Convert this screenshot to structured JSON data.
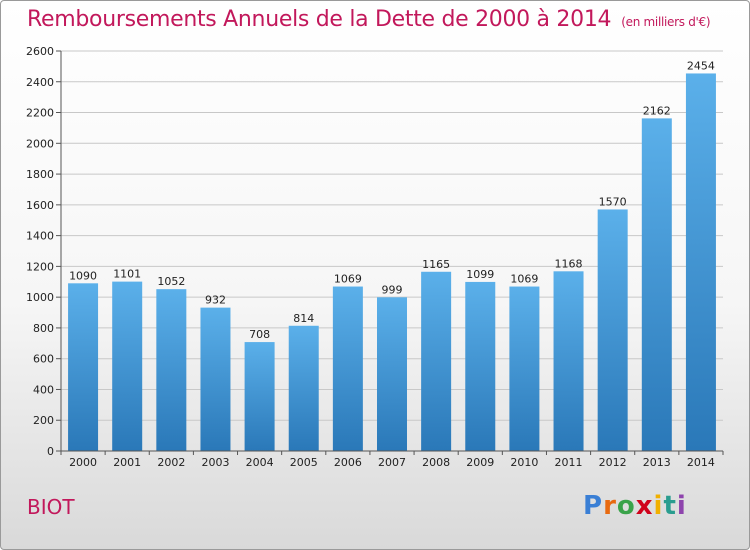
{
  "title": "Remboursements Annuels de la Dette de 2000 à 2014",
  "subtitle": "(en milliers d'€)",
  "place": "BIOT",
  "logo": {
    "letters": [
      "P",
      "r",
      "o",
      "x",
      "i",
      "t",
      "i"
    ],
    "colors": [
      "#3a7fd5",
      "#e86a10",
      "#3aa34a",
      "#d0021b",
      "#f1b000",
      "#2a9d8f",
      "#8e44ad"
    ]
  },
  "colors": {
    "bar": "#4aa3df",
    "bar_dark": "#2f7fc0",
    "title": "#c2185b"
  },
  "chart_data": {
    "type": "bar",
    "title": "Remboursements Annuels de la Dette de 2000 à 2014",
    "categories": [
      "2000",
      "2001",
      "2002",
      "2003",
      "2004",
      "2005",
      "2006",
      "2007",
      "2008",
      "2009",
      "2010",
      "2011",
      "2012",
      "2013",
      "2014"
    ],
    "values": [
      1090,
      1101,
      1052,
      932,
      708,
      814,
      1069,
      999,
      1165,
      1099,
      1069,
      1168,
      1570,
      2162,
      2454
    ],
    "ylim": [
      0,
      2600
    ],
    "yticks": [
      0,
      200,
      400,
      600,
      800,
      1000,
      1200,
      1400,
      1600,
      1800,
      2000,
      2200,
      2400,
      2600
    ],
    "grid": true,
    "xlabel": "",
    "ylabel": ""
  }
}
